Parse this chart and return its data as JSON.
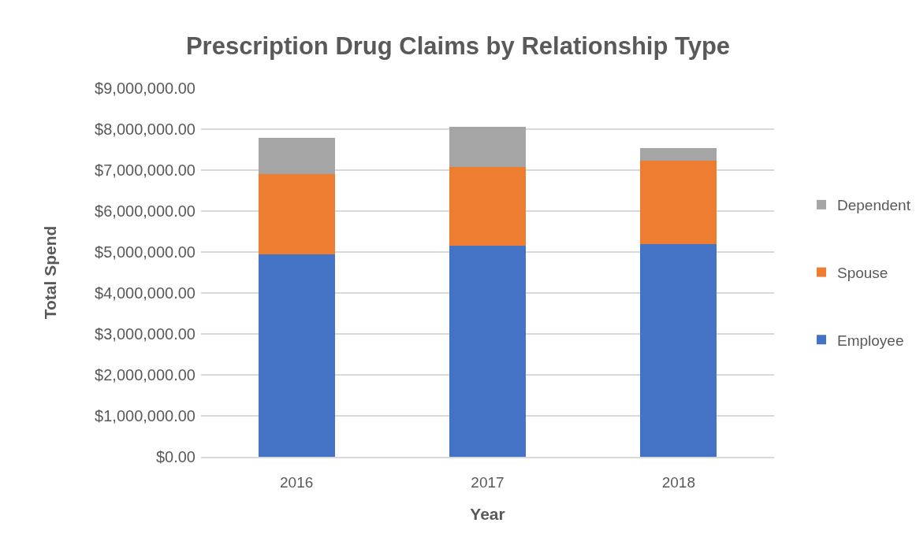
{
  "chart_data": {
    "type": "bar",
    "title": "Prescription Drug Claims by Relationship Type",
    "xlabel": "Year",
    "ylabel": "Total Spend",
    "categories": [
      "2016",
      "2017",
      "2018"
    ],
    "series": [
      {
        "name": "Employee",
        "color": "#4472c4",
        "values": [
          4940000,
          5150000,
          5200000
        ]
      },
      {
        "name": "Spouse",
        "color": "#ed7d31",
        "values": [
          1970000,
          1930000,
          2040000
        ]
      },
      {
        "name": "Dependent",
        "color": "#a5a5a5",
        "values": [
          870000,
          980000,
          290000
        ]
      }
    ],
    "stacked": true,
    "ylim": [
      0,
      9000000
    ],
    "yticks": [
      {
        "value": 0,
        "label": "$0.00"
      },
      {
        "value": 1000000,
        "label": "$1,000,000.00"
      },
      {
        "value": 2000000,
        "label": "$2,000,000.00"
      },
      {
        "value": 3000000,
        "label": "$3,000,000.00"
      },
      {
        "value": 4000000,
        "label": "$4,000,000.00"
      },
      {
        "value": 5000000,
        "label": "$5,000,000.00"
      },
      {
        "value": 6000000,
        "label": "$6,000,000.00"
      },
      {
        "value": 7000000,
        "label": "$7,000,000.00"
      },
      {
        "value": 8000000,
        "label": "$8,000,000.00"
      },
      {
        "value": 9000000,
        "label": "$9,000,000.00"
      }
    ],
    "grid": "y",
    "legend": "right"
  }
}
